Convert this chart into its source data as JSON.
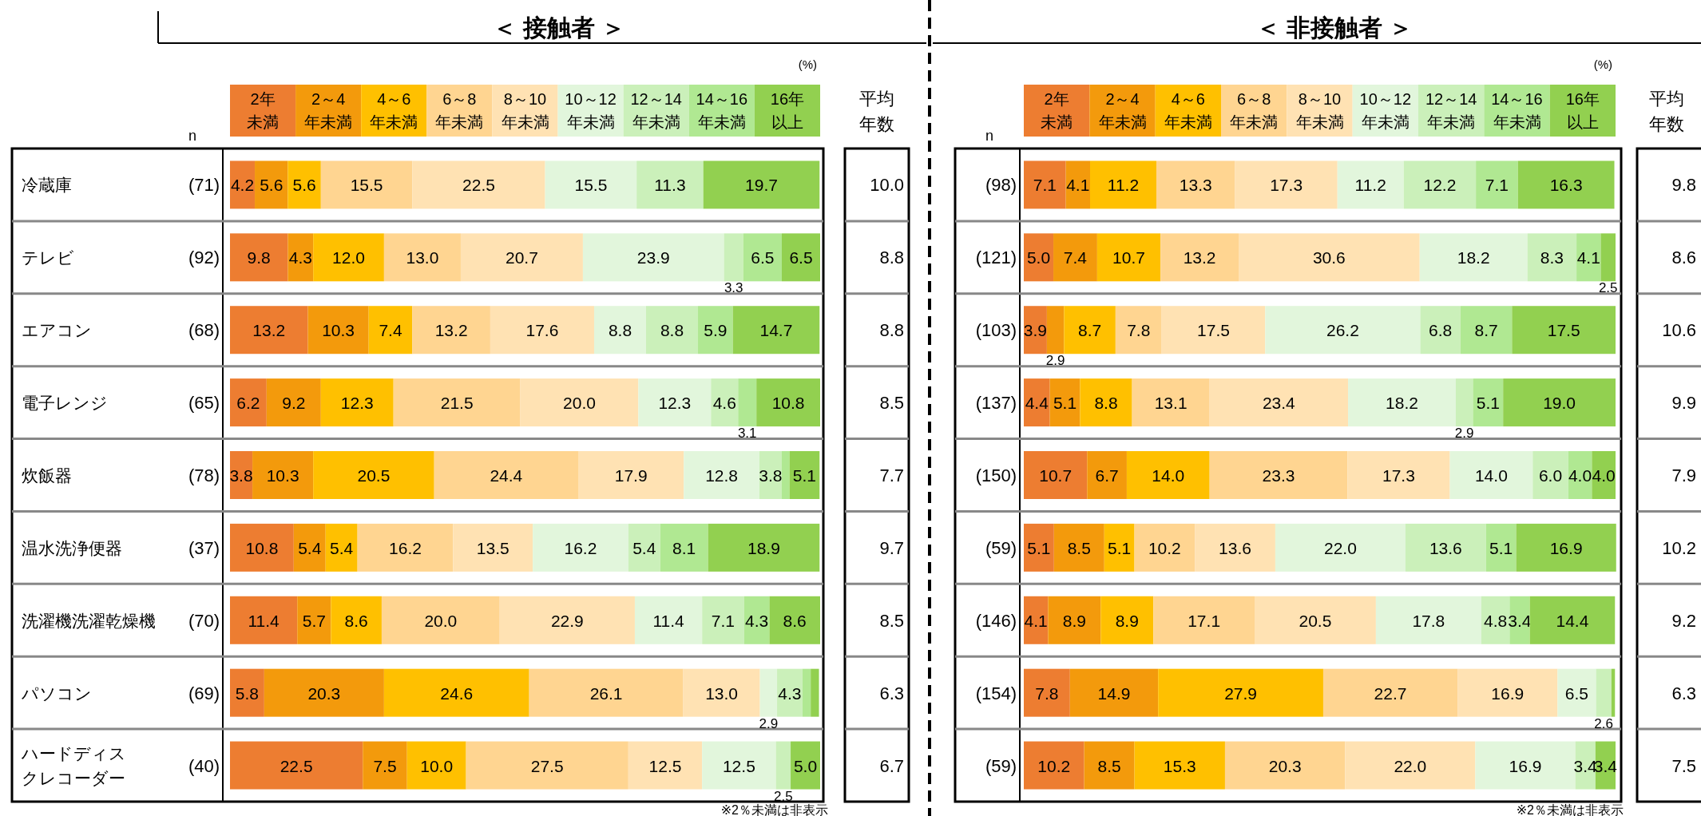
{
  "chart_data": [
    {
      "type": "bar",
      "orientation": "horizontal",
      "stacked": true,
      "title": "＜ 接触者 ＞",
      "legend": "top",
      "tick_labels": "y",
      "xlim": [
        0,
        100
      ],
      "categories": [
        "冷蔵庫",
        "テレビ",
        "エアコン",
        "電子レンジ",
        "炊飯器",
        "温水洗浄便器",
        "洗濯機洗濯乾燥機",
        "パソコン",
        "ハードディスクレコーダー"
      ],
      "y2_categories": [
        "(71)",
        "(92)",
        "(68)",
        "(65)",
        "(78)",
        "(37)",
        "(70)",
        "(69)",
        "(40)"
      ],
      "series": [
        {
          "name": "2年未満",
          "color": "#ED7D31",
          "values": [
            4.2,
            9.8,
            13.2,
            6.2,
            3.8,
            10.8,
            11.4,
            5.8,
            22.5
          ],
          "value_labels": [
            "4.2",
            "9.8",
            "13.2",
            "6.2",
            "3.8",
            "10.8",
            "11.4",
            "5.8",
            "22.5"
          ]
        },
        {
          "name": "2～4年未満",
          "color": "#F39A0C",
          "values": [
            5.6,
            4.3,
            10.3,
            9.2,
            10.3,
            5.4,
            5.7,
            20.3,
            7.5
          ],
          "value_labels": [
            "5.6",
            "4.3",
            "10.3",
            "9.2",
            "10.3",
            "5.4",
            "5.7",
            "20.3",
            "7.5"
          ]
        },
        {
          "name": "4～6年未満",
          "color": "#FFC000",
          "values": [
            5.6,
            12.0,
            7.4,
            12.3,
            20.5,
            5.4,
            8.6,
            24.6,
            10.0
          ],
          "value_labels": [
            "5.6",
            "12.0",
            "7.4",
            "12.3",
            "20.5",
            "5.4",
            "8.6",
            "24.6",
            "10.0"
          ]
        },
        {
          "name": "6～8年未満",
          "color": "#FFD591",
          "values": [
            15.5,
            13.0,
            13.2,
            21.5,
            24.4,
            16.2,
            20.0,
            26.1,
            27.5
          ],
          "value_labels": [
            "15.5",
            "13.0",
            "13.2",
            "21.5",
            "24.4",
            "16.2",
            "20.0",
            "26.1",
            "27.5"
          ]
        },
        {
          "name": "8～10年未満",
          "color": "#FFE2B3",
          "values": [
            22.5,
            20.7,
            17.6,
            20.0,
            17.9,
            13.5,
            22.9,
            13.0,
            12.5
          ],
          "value_labels": [
            "22.5",
            "20.7",
            "17.6",
            "20.0",
            "17.9",
            "13.5",
            "22.9",
            "13.0",
            "12.5"
          ]
        },
        {
          "name": "10～12年未満",
          "color": "#E2F6DC",
          "values": [
            15.5,
            23.9,
            8.8,
            12.3,
            12.8,
            16.2,
            11.4,
            2.9,
            12.5
          ],
          "value_labels": [
            "15.5",
            "23.9",
            "8.8",
            "12.3",
            "12.8",
            "16.2",
            "11.4",
            "2.9",
            "12.5"
          ]
        },
        {
          "name": "12～14年未満",
          "color": "#CBF0BA",
          "values": [
            11.3,
            3.3,
            8.8,
            4.6,
            3.8,
            5.4,
            7.1,
            4.3,
            2.5
          ],
          "value_labels": [
            "11.3",
            "3.3",
            "8.8",
            "4.6",
            "3.8",
            "5.4",
            "7.1",
            "4.3",
            "2.5"
          ]
        },
        {
          "name": "14～16年未満",
          "color": "#B0E892",
          "values": [
            0,
            6.5,
            5.9,
            3.1,
            1.3,
            8.1,
            4.3,
            1.4,
            0
          ],
          "value_labels": [
            null,
            "6.5",
            "5.9",
            "3.1",
            null,
            "8.1",
            "4.3",
            null,
            null
          ]
        },
        {
          "name": "16年以上",
          "color": "#92D050",
          "values": [
            19.7,
            6.5,
            14.7,
            10.8,
            5.1,
            18.9,
            8.6,
            1.4,
            5.0
          ],
          "value_labels": [
            "19.7",
            "6.5",
            "14.7",
            "10.8",
            "5.1",
            "18.9",
            "8.6",
            null,
            "5.0"
          ]
        }
      ],
      "annotations": [
        "(%)",
        "n",
        "平均年数",
        "※2％未満は非表示",
        "10.0",
        "8.8",
        "8.8",
        "8.5",
        "7.7",
        "9.7",
        "8.5",
        "6.3",
        "6.7"
      ]
    },
    {
      "type": "bar",
      "orientation": "horizontal",
      "stacked": true,
      "title": "＜ 非接触者 ＞",
      "legend": "top",
      "tick_labels": false,
      "xlim": [
        0,
        100
      ],
      "categories": [
        null,
        null,
        null,
        null,
        null,
        null,
        null,
        null,
        null
      ],
      "y2_categories": [
        "(98)",
        "(121)",
        "(103)",
        "(137)",
        "(150)",
        "(59)",
        "(146)",
        "(154)",
        "(59)"
      ],
      "series": [
        {
          "name": "2年未満",
          "color": "#ED7D31",
          "values": [
            7.1,
            5.0,
            3.9,
            4.4,
            10.7,
            5.1,
            4.1,
            7.8,
            10.2
          ],
          "value_labels": [
            "7.1",
            "5.0",
            "3.9",
            "4.4",
            "10.7",
            "5.1",
            "4.1",
            "7.8",
            "10.2"
          ]
        },
        {
          "name": "2～4年未満",
          "color": "#F39A0C",
          "values": [
            4.1,
            7.4,
            2.9,
            5.1,
            6.7,
            8.5,
            8.9,
            14.9,
            8.5
          ],
          "value_labels": [
            "4.1",
            "7.4",
            "2.9",
            "5.1",
            "6.7",
            "8.5",
            "8.9",
            "14.9",
            "8.5"
          ]
        },
        {
          "name": "4～6年未満",
          "color": "#FFC000",
          "values": [
            11.2,
            10.7,
            8.7,
            8.8,
            14.0,
            5.1,
            8.9,
            27.9,
            15.3
          ],
          "value_labels": [
            "11.2",
            "10.7",
            "8.7",
            "8.8",
            "14.0",
            "5.1",
            "8.9",
            "27.9",
            "15.3"
          ]
        },
        {
          "name": "6～8年未満",
          "color": "#FFD591",
          "values": [
            13.3,
            13.2,
            7.8,
            13.1,
            23.3,
            10.2,
            17.1,
            22.7,
            20.3
          ],
          "value_labels": [
            "13.3",
            "13.2",
            "7.8",
            "13.1",
            "23.3",
            "10.2",
            "17.1",
            "22.7",
            "20.3"
          ]
        },
        {
          "name": "8～10年未満",
          "color": "#FFE2B3",
          "values": [
            17.3,
            30.6,
            17.5,
            23.4,
            17.3,
            13.6,
            20.5,
            16.9,
            22.0
          ],
          "value_labels": [
            "17.3",
            "30.6",
            "17.5",
            "23.4",
            "17.3",
            "13.6",
            "20.5",
            "16.9",
            "22.0"
          ]
        },
        {
          "name": "10～12年未満",
          "color": "#E2F6DC",
          "values": [
            11.2,
            18.2,
            26.2,
            18.2,
            14.0,
            22.0,
            17.8,
            6.5,
            16.9
          ],
          "value_labels": [
            "11.2",
            "18.2",
            "26.2",
            "18.2",
            "14.0",
            "22.0",
            "17.8",
            "6.5",
            "16.9"
          ]
        },
        {
          "name": "12～14年未満",
          "color": "#CBF0BA",
          "values": [
            12.2,
            8.3,
            6.8,
            2.9,
            6.0,
            13.6,
            4.8,
            2.6,
            3.4
          ],
          "value_labels": [
            "12.2",
            "8.3",
            "6.8",
            "2.9",
            "6.0",
            "13.6",
            "4.8",
            "2.6",
            "3.4"
          ]
        },
        {
          "name": "14～16年未満",
          "color": "#B0E892",
          "values": [
            7.1,
            4.1,
            8.7,
            5.1,
            4.0,
            5.1,
            3.4,
            0,
            0
          ],
          "value_labels": [
            "7.1",
            "4.1",
            "8.7",
            "5.1",
            "4.0",
            "5.1",
            "3.4",
            null,
            null
          ]
        },
        {
          "name": "16年以上",
          "color": "#92D050",
          "values": [
            16.3,
            2.5,
            17.5,
            19.0,
            4.0,
            16.9,
            14.4,
            0.6,
            3.4
          ],
          "value_labels": [
            "16.3",
            "2.5",
            "17.5",
            "19.0",
            "4.0",
            "16.9",
            "14.4",
            null,
            "3.4"
          ]
        }
      ],
      "annotations": [
        "(%)",
        "n",
        "平均年数",
        "※2％未満は非表示",
        "9.8",
        "8.6",
        "10.6",
        "9.9",
        "7.9",
        "10.2",
        "9.2",
        "6.3",
        "7.5"
      ]
    }
  ]
}
